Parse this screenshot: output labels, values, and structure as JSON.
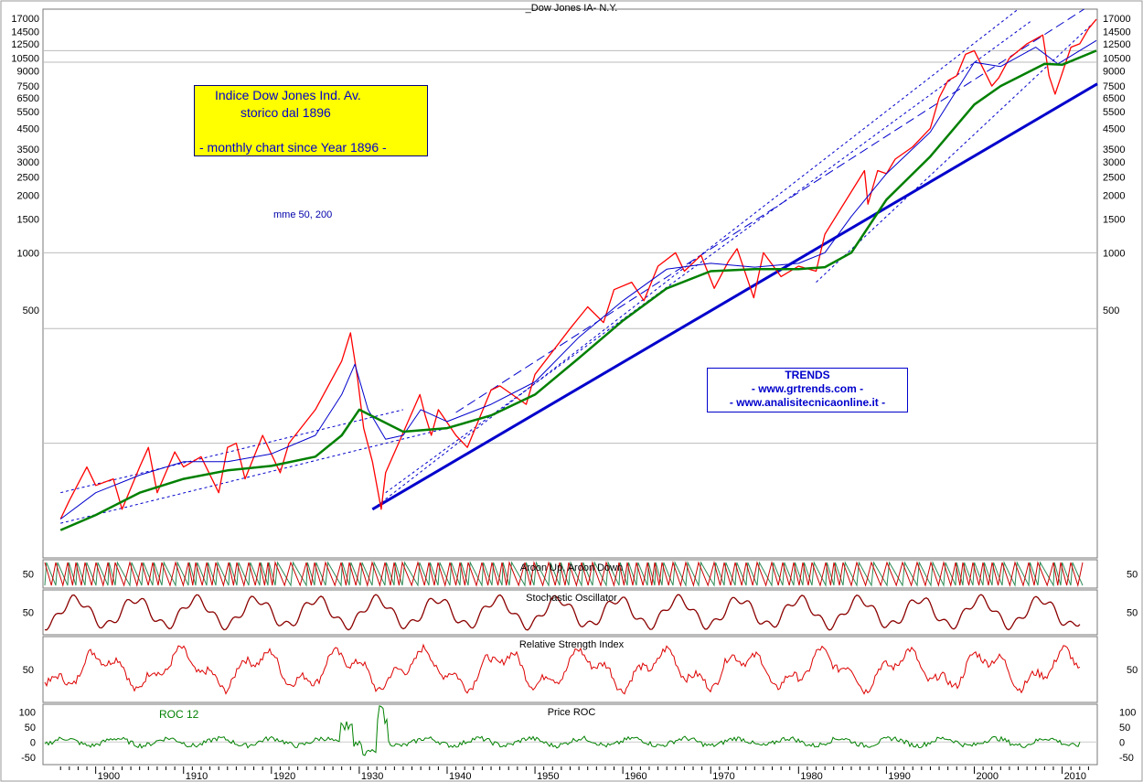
{
  "chart_data": [
    {
      "type": "line",
      "title": "_Dow Jones IA- N.Y.",
      "y_scale": "log",
      "xlim": [
        1894,
        2014
      ],
      "ylim": [
        25,
        19000
      ],
      "x_ticks": [
        "1900",
        "1910",
        "1920",
        "1930",
        "1940",
        "1950",
        "1960",
        "1970",
        "1980",
        "1990",
        "2000",
        "2010"
      ],
      "y_ticks": [
        "17000",
        "14500",
        "12500",
        "10500",
        "9000",
        "7500",
        "6500",
        "5500",
        "4500",
        "3500",
        "3000",
        "2500",
        "2000",
        "1500",
        "1000",
        "500"
      ],
      "grid": "horizontal reference lines",
      "series": [
        {
          "color": "#ff0000",
          "x": [
            1896,
            1897,
            1899,
            1900,
            1902,
            1903,
            1905,
            1906,
            1907,
            1909,
            1910,
            1912,
            1914,
            1915,
            1916,
            1917,
            1919,
            1921,
            1922,
            1925,
            1928,
            1929,
            1929.8,
            1930.5,
            1931.5,
            1932.5,
            1933,
            1936.9,
            1937.5,
            1938.2,
            1939,
            1941,
            1942.3,
            1945,
            1946,
            1949,
            1950,
            1954,
            1956,
            1957.8,
            1959,
            1961,
            1962.4,
            1964,
            1966,
            1967,
            1968.9,
            1970.4,
            1972,
            1973,
            1974.9,
            1976,
            1978,
            1980,
            1982,
            1983,
            1987.5,
            1987.9,
            1989,
            1990,
            1991,
            1993,
            1995,
            1996,
            1997,
            1998,
            1999,
            2000,
            2002,
            2002.8,
            2004,
            2006,
            2007.8,
            2008.5,
            2009.2,
            2011,
            2012,
            2013,
            2013.9
          ],
          "y": [
            40,
            50,
            75,
            60,
            65,
            45,
            75,
            95,
            55,
            90,
            75,
            85,
            55,
            95,
            100,
            65,
            110,
            70,
            100,
            150,
            270,
            380,
            220,
            120,
            80,
            45,
            70,
            180,
            140,
            110,
            150,
            110,
            95,
            190,
            200,
            160,
            230,
            400,
            520,
            430,
            640,
            700,
            560,
            850,
            1000,
            800,
            970,
            650,
            900,
            1050,
            580,
            1000,
            750,
            850,
            800,
            1250,
            2700,
            1800,
            2700,
            2600,
            3100,
            3600,
            4500,
            6500,
            8000,
            8500,
            11000,
            11500,
            7500,
            8300,
            10500,
            12500,
            13900,
            8500,
            6800,
            12000,
            12500,
            15000,
            16800
          ]
        },
        {
          "color": "#0000cc",
          "x": [
            1896,
            1900,
            1905,
            1910,
            1915,
            1920,
            1925,
            1928,
            1929.5,
            1931,
            1933,
            1935,
            1937,
            1940,
            1945,
            1950,
            1955,
            1960,
            1965,
            1970,
            1975,
            1980,
            1983,
            1986,
            1990,
            1995,
            2000,
            2003,
            2007,
            2009.5,
            2013.9
          ],
          "y": [
            40,
            55,
            68,
            80,
            80,
            88,
            110,
            180,
            260,
            150,
            105,
            110,
            150,
            130,
            160,
            210,
            360,
            560,
            820,
            880,
            840,
            880,
            1000,
            1550,
            2600,
            4300,
            10000,
            9500,
            12000,
            9800,
            13000
          ]
        },
        {
          "color": "#008000",
          "x": [
            1896,
            1900,
            1905,
            1910,
            1915,
            1920,
            1925,
            1928,
            1930,
            1932,
            1935,
            1940,
            1945,
            1950,
            1955,
            1960,
            1965,
            1970,
            1975,
            1980,
            1983,
            1986,
            1990,
            1995,
            2000,
            2003,
            2008,
            2010,
            2013.9
          ],
          "y": [
            35,
            42,
            55,
            65,
            72,
            76,
            85,
            110,
            150,
            135,
            115,
            120,
            140,
            180,
            280,
            440,
            650,
            800,
            820,
            820,
            840,
            1000,
            1900,
            3200,
            6000,
            7500,
            9800,
            9700,
            11500
          ]
        }
      ]
    },
    {
      "type": "line",
      "title": "Aroon Up, Aroon Down",
      "ylim": [
        0,
        100
      ],
      "y_ticks": [
        "50"
      ]
    },
    {
      "type": "line",
      "title": "Stochastic Oscillator",
      "ylim": [
        0,
        100
      ],
      "y_ticks": [
        "50"
      ]
    },
    {
      "type": "line",
      "title": "Relative Strength Index",
      "ylim": [
        0,
        100
      ],
      "y_ticks": [
        "50"
      ]
    },
    {
      "type": "line",
      "title": "Price ROC",
      "ylim": [
        -75,
        125
      ],
      "y_ticks": [
        "100",
        "50",
        "0",
        "-50"
      ],
      "annotation": "ROC 12"
    }
  ],
  "notes": {
    "title_line1": "Indice Dow Jones Ind. Av.",
    "title_line2": "storico  dal  1896",
    "title_line3": "-  monthly chart since  Year 1896 -",
    "mme_label": "mme  50, 200",
    "trends_line1": "TRENDS",
    "trends_line2": "- www.grtrends.com -",
    "trends_line3": "- www.analisitecnicaonline.it -"
  },
  "colors": {
    "price": "#ff0000",
    "mme50": "#0000cc",
    "mme200": "#008000",
    "trendline": "#0000cc",
    "aroon_up": "#2e8b57",
    "aroon_down": "#cc0000",
    "stochastic": "#8b0000",
    "rsi": "#dd0000",
    "roc": "#008000",
    "note_background": "#ffff00"
  }
}
